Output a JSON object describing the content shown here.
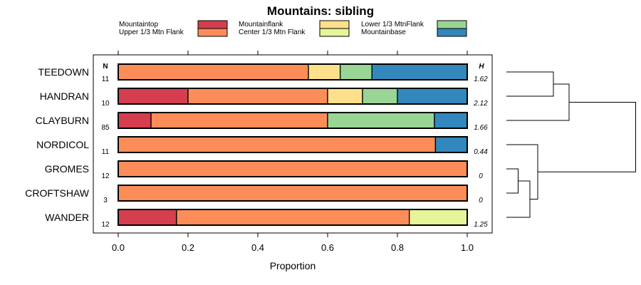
{
  "chart_data": {
    "type": "bar",
    "orientation": "horizontal-stacked",
    "title": "Mountains: sibling",
    "xlabel": "Proportion",
    "xlim": [
      0,
      1
    ],
    "xticks": [
      "0.0",
      "0.2",
      "0.4",
      "0.6",
      "0.8",
      "1.0"
    ],
    "n_header": "N",
    "h_header": "H",
    "legend": [
      {
        "name": "Mountaintop",
        "color": "#d53e4f"
      },
      {
        "name": "Mountainflank",
        "color": "#fee08b"
      },
      {
        "name": "Lower 1/3 MtnFlank",
        "color": "#99d594"
      },
      {
        "name": "Upper 1/3 Mtn Flank",
        "color": "#fc8d59"
      },
      {
        "name": "Center 1/3 Mtn Flank",
        "color": "#e6f598"
      },
      {
        "name": "Mountainbase",
        "color": "#3288bd"
      }
    ],
    "categories": [
      "TEEDOWN",
      "HANDRAN",
      "CLAYBURN",
      "NORDICOL",
      "GROMES",
      "CROFTSHAW",
      "WANDER"
    ],
    "n_values": [
      "11",
      "10",
      "85",
      "11",
      "12",
      "3",
      "12"
    ],
    "h_values": [
      "1.62",
      "2.12",
      "1.66",
      "0.44",
      "0",
      "0",
      "1.25"
    ],
    "stack_order": [
      "Mountaintop",
      "Upper 1/3 Mtn Flank",
      "Mountainflank",
      "Lower 1/3 MtnFlank",
      "Center 1/3 Mtn Flank",
      "Mountainbase"
    ],
    "series": [
      {
        "name": "Mountaintop",
        "values": [
          0,
          0.2,
          0.094,
          0,
          0,
          0,
          0.167
        ]
      },
      {
        "name": "Upper 1/3 Mtn Flank",
        "values": [
          0.545,
          0.4,
          0.506,
          0.909,
          1,
          1,
          0.667
        ]
      },
      {
        "name": "Mountainflank",
        "values": [
          0.091,
          0.1,
          0,
          0,
          0,
          0,
          0
        ]
      },
      {
        "name": "Lower 1/3 MtnFlank",
        "values": [
          0.091,
          0.1,
          0.306,
          0,
          0,
          0,
          0
        ]
      },
      {
        "name": "Center 1/3 Mtn Flank",
        "values": [
          0,
          0,
          0,
          0,
          0,
          0,
          0.167
        ]
      },
      {
        "name": "Mountainbase",
        "values": [
          0.273,
          0.2,
          0.094,
          0.091,
          0,
          0,
          0
        ]
      }
    ],
    "dendrogram": {
      "merges": [
        {
          "a": "TEEDOWN",
          "b": "HANDRAN",
          "height": 0.12
        },
        {
          "a": "TEEDOWN+HANDRAN",
          "b": "CLAYBURN",
          "height": 0.16
        },
        {
          "a": "GROMES",
          "b": "CROFTSHAW",
          "height": 0.03
        },
        {
          "a": "GROMES+CROFTSHAW",
          "b": "WANDER",
          "height": 0.06
        },
        {
          "a": "NORDICOL",
          "b": "GROMES+CROFTSHAW+WANDER",
          "height": 0.08
        },
        {
          "a": "TEEDOWN+HANDRAN+CLAYBURN",
          "b": "NORDICOL+GROMES+CROFTSHAW+WANDER",
          "height": 0.33
        }
      ]
    }
  }
}
